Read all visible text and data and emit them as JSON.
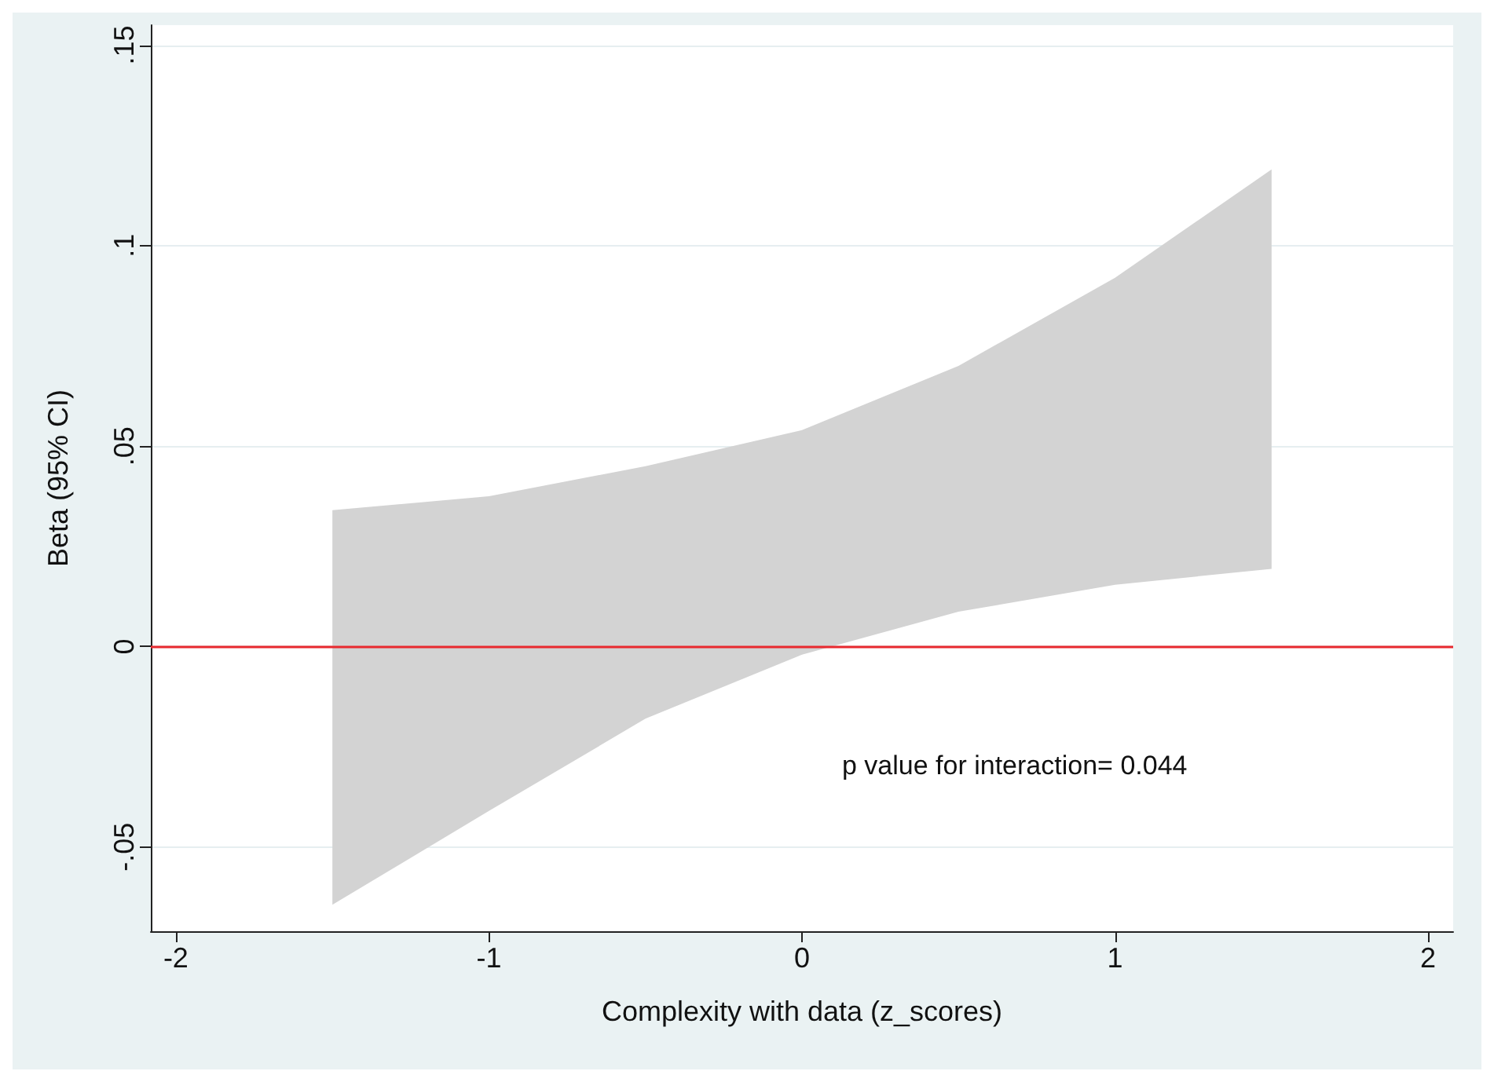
{
  "chart_data": {
    "type": "line",
    "xlabel": "Complexity with data (z_scores)",
    "ylabel": "Beta (95% CI)",
    "xlim": [
      -2.08,
      2.08
    ],
    "xticks": [
      -2,
      -1,
      0,
      1,
      2
    ],
    "ylim": [
      -0.071,
      0.155
    ],
    "yticks": [
      {
        "value": -0.05,
        "label": "-.05"
      },
      {
        "value": 0,
        "label": "0"
      },
      {
        "value": 0.05,
        "label": ".05"
      },
      {
        "value": 0.1,
        "label": ".1"
      },
      {
        "value": 0.15,
        "label": ".15"
      }
    ],
    "grid": "y",
    "series": [
      {
        "color": "#d3d3d3",
        "x": [
          -1.5,
          -1,
          -0.5,
          0,
          0.5,
          1,
          1.5
        ],
        "values": [
          null,
          null,
          null,
          null,
          null,
          null,
          null
        ],
        "lower": [
          -0.0644,
          -0.041,
          -0.018,
          -0.002,
          0.0087,
          0.0154,
          0.0194
        ],
        "upper": [
          0.034,
          0.0375,
          0.045,
          0.054,
          0.07,
          0.092,
          0.119
        ]
      }
    ],
    "ref_lines": [
      {
        "axis": "y",
        "value": 0,
        "color": "#e8292f",
        "line_style": "solid"
      }
    ],
    "annotations": [
      "p value for interaction= 0.044"
    ]
  }
}
